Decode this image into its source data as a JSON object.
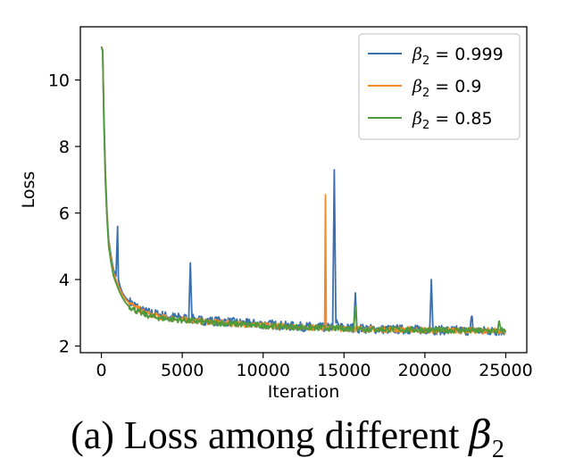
{
  "caption": {
    "text": "(a) Loss among different ",
    "symbol": "β",
    "subscript": "2"
  },
  "chart_data": {
    "type": "line",
    "title": "",
    "xlabel": "Iteration",
    "ylabel": "Loss",
    "xlim": [
      -1300,
      26300
    ],
    "ylim": [
      1.8,
      11.6
    ],
    "xticks": [
      0,
      5000,
      10000,
      15000,
      20000,
      25000
    ],
    "yticks": [
      2,
      4,
      6,
      8,
      10
    ],
    "grid": false,
    "legend_position": "top-right",
    "series": [
      {
        "name": "β2 = 0.999",
        "legend_symbol": "β",
        "legend_sub": "2",
        "legend_value": " = 0.999",
        "color": "#3a6fb0",
        "x": [
          0,
          80,
          150,
          250,
          350,
          450,
          600,
          750,
          900,
          1000,
          1050,
          1150,
          1300,
          1500,
          1700,
          2000,
          2300,
          2600,
          3000,
          3500,
          4000,
          4500,
          5000,
          5400,
          5500,
          5600,
          5800,
          6000,
          6500,
          7000,
          7500,
          8000,
          8500,
          9000,
          9500,
          10000,
          10500,
          11000,
          11500,
          12000,
          12500,
          13000,
          13500,
          13900,
          14100,
          14300,
          14400,
          14500,
          14700,
          15000,
          15300,
          15600,
          15700,
          15800,
          16000,
          16500,
          17000,
          17500,
          18000,
          18500,
          19000,
          19500,
          20000,
          20300,
          20400,
          20500,
          21000,
          21500,
          22000,
          22500,
          22800,
          22900,
          23000,
          23500,
          24000,
          24500,
          25000
        ],
        "values": [
          11.0,
          10.9,
          9.0,
          7.2,
          6.0,
          5.2,
          4.7,
          4.3,
          4.1,
          5.6,
          4.0,
          3.8,
          3.6,
          3.45,
          3.35,
          3.25,
          3.15,
          3.05,
          3.0,
          2.95,
          2.9,
          2.87,
          2.85,
          2.83,
          4.5,
          2.8,
          2.82,
          2.78,
          2.76,
          2.75,
          2.74,
          2.72,
          2.7,
          2.68,
          2.67,
          2.66,
          2.65,
          2.62,
          2.6,
          2.6,
          2.58,
          2.58,
          2.56,
          2.55,
          2.55,
          2.6,
          7.3,
          2.7,
          2.58,
          2.55,
          2.54,
          2.55,
          3.6,
          2.52,
          2.53,
          2.52,
          2.51,
          2.5,
          2.5,
          2.5,
          2.5,
          2.49,
          2.5,
          2.48,
          4.0,
          2.48,
          2.48,
          2.47,
          2.47,
          2.46,
          2.46,
          2.9,
          2.46,
          2.46,
          2.45,
          2.45,
          2.45
        ]
      },
      {
        "name": "β2 = 0.9",
        "legend_symbol": "β",
        "legend_sub": "2",
        "legend_value": " = 0.9",
        "color": "#f28a2b",
        "x": [
          0,
          80,
          150,
          250,
          350,
          450,
          600,
          750,
          900,
          1100,
          1300,
          1500,
          1700,
          2000,
          2500,
          3000,
          3500,
          4000,
          4500,
          5000,
          5500,
          6000,
          7000,
          8000,
          9000,
          10000,
          11000,
          12000,
          13000,
          13500,
          13800,
          13850,
          13900,
          14000,
          14500,
          15000,
          16000,
          17000,
          18000,
          19000,
          20000,
          21000,
          22000,
          23000,
          24000,
          25000
        ],
        "values": [
          11.0,
          10.9,
          8.9,
          7.0,
          5.9,
          5.1,
          4.6,
          4.2,
          4.0,
          3.75,
          3.55,
          3.4,
          3.3,
          3.2,
          3.05,
          2.95,
          2.9,
          2.85,
          2.82,
          2.8,
          2.78,
          2.75,
          2.72,
          2.68,
          2.65,
          2.62,
          2.6,
          2.58,
          2.56,
          2.55,
          2.55,
          6.55,
          2.6,
          2.55,
          2.53,
          2.52,
          2.52,
          2.5,
          2.5,
          2.49,
          2.48,
          2.47,
          2.47,
          2.46,
          2.46,
          2.45
        ]
      },
      {
        "name": "β2 = 0.85",
        "legend_symbol": "β",
        "legend_sub": "2",
        "legend_value": " = 0.85",
        "color": "#4e9a3c",
        "x": [
          0,
          80,
          150,
          250,
          350,
          450,
          600,
          750,
          900,
          1100,
          1300,
          1500,
          1700,
          2000,
          2500,
          3000,
          3500,
          4000,
          4500,
          5000,
          5500,
          6000,
          7000,
          8000,
          9000,
          10000,
          11000,
          12000,
          13000,
          14000,
          15000,
          15600,
          15700,
          15800,
          16000,
          17000,
          18000,
          19000,
          20000,
          21000,
          22000,
          23000,
          24000,
          24500,
          24600,
          24700,
          25000
        ],
        "values": [
          11.0,
          10.85,
          8.8,
          6.9,
          5.8,
          5.0,
          4.5,
          4.1,
          3.9,
          3.65,
          3.45,
          3.3,
          3.2,
          3.1,
          2.98,
          2.9,
          2.85,
          2.82,
          2.8,
          2.78,
          2.76,
          2.74,
          2.7,
          2.67,
          2.64,
          2.61,
          2.59,
          2.57,
          2.55,
          2.54,
          2.53,
          2.53,
          3.2,
          2.52,
          2.52,
          2.5,
          2.5,
          2.49,
          2.48,
          2.47,
          2.47,
          2.46,
          2.46,
          2.45,
          2.75,
          2.45,
          2.45
        ]
      }
    ]
  }
}
